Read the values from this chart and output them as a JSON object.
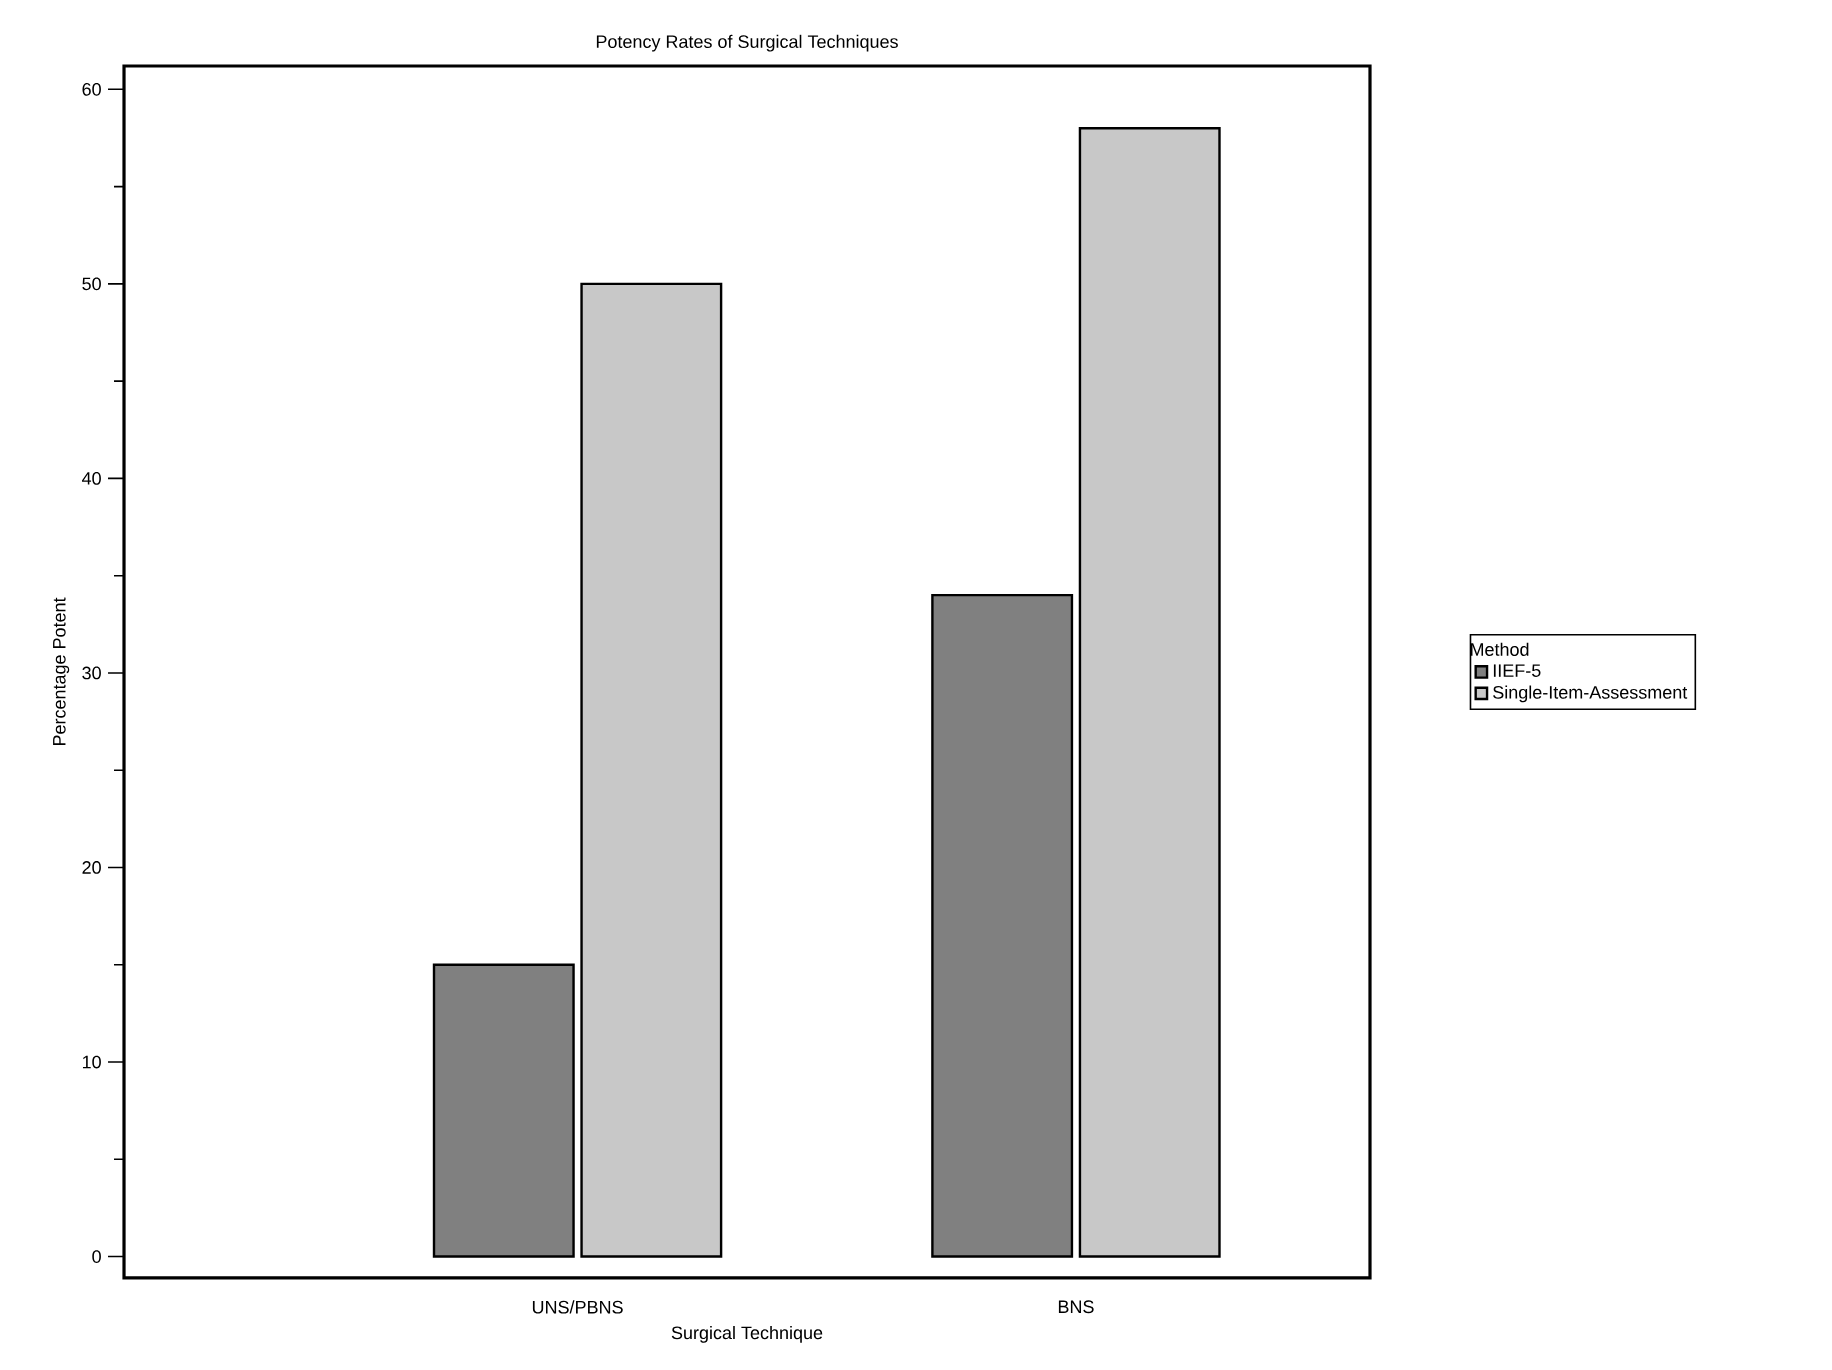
{
  "chart_data": {
    "type": "bar",
    "title": "Potency Rates of Surgical Techniques",
    "xlabel": "Surgical Technique",
    "ylabel": "Percentage Potent",
    "legend_title": "Method",
    "categories": [
      "UNS/PBNS",
      "BNS"
    ],
    "series": [
      {
        "name": "IIEF-5",
        "color": "#808080",
        "values": [
          15,
          34
        ]
      },
      {
        "name": "Single-Item-Assessment",
        "color": "#c8c8c8",
        "values": [
          50,
          58
        ]
      }
    ],
    "ylim": [
      -1.1,
      61.2
    ],
    "yticks": [
      0,
      10,
      20,
      30,
      40,
      50,
      60
    ],
    "legend": "right",
    "grid": false
  }
}
